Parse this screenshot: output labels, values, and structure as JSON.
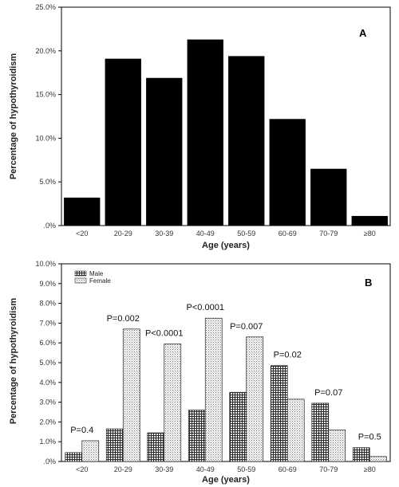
{
  "chart_data": [
    {
      "type": "bar",
      "panel_label": "A",
      "categories": [
        "<20",
        "20-29",
        "30-39",
        "40-49",
        "50-59",
        "60-69",
        "70-79",
        "≥80"
      ],
      "values": [
        3.2,
        19.1,
        16.9,
        21.3,
        19.4,
        12.2,
        6.5,
        1.1
      ],
      "xlabel": "Age (years)",
      "ylabel": "Percentage of hypothyroidism",
      "ylim": [
        0,
        25
      ],
      "yticks": [
        0,
        5,
        10,
        15,
        20,
        25
      ],
      "ytick_labels": [
        ".0%",
        "5.0%",
        "10.0%",
        "15.0%",
        "20.0%",
        "25.0%"
      ],
      "bar_color": "#000000",
      "grid": false
    },
    {
      "type": "bar",
      "panel_label": "B",
      "categories": [
        "<20",
        "20-29",
        "30-39",
        "40-49",
        "50-59",
        "60-69",
        "70-79",
        "≥80"
      ],
      "series": [
        {
          "name": "Male",
          "values": [
            0.45,
            1.65,
            1.45,
            2.6,
            3.5,
            4.85,
            2.95,
            0.7
          ],
          "fill": "#6b6b6b"
        },
        {
          "name": "Female",
          "values": [
            1.05,
            6.7,
            5.95,
            7.25,
            6.3,
            3.15,
            1.6,
            0.25
          ],
          "fill": "#d6d6d6"
        }
      ],
      "annotations": [
        "P=0.4",
        "P=0.002",
        "P<0.0001",
        "P<0.0001",
        "P=0.007",
        "P=0.02",
        "P=0.07",
        "P=0.5"
      ],
      "xlabel": "Age (years)",
      "ylabel": "Percentage of hypothyroidism",
      "ylim": [
        0,
        10
      ],
      "yticks": [
        0,
        1,
        2,
        3,
        4,
        5,
        6,
        7,
        8,
        9,
        10
      ],
      "ytick_labels": [
        ".0%",
        "1.0%",
        "2.0%",
        "3.0%",
        "4.0%",
        "5.0%",
        "6.0%",
        "7.0%",
        "8.0%",
        "9.0%",
        "10.0%"
      ],
      "legend_position": "top-left",
      "grid": false
    }
  ]
}
